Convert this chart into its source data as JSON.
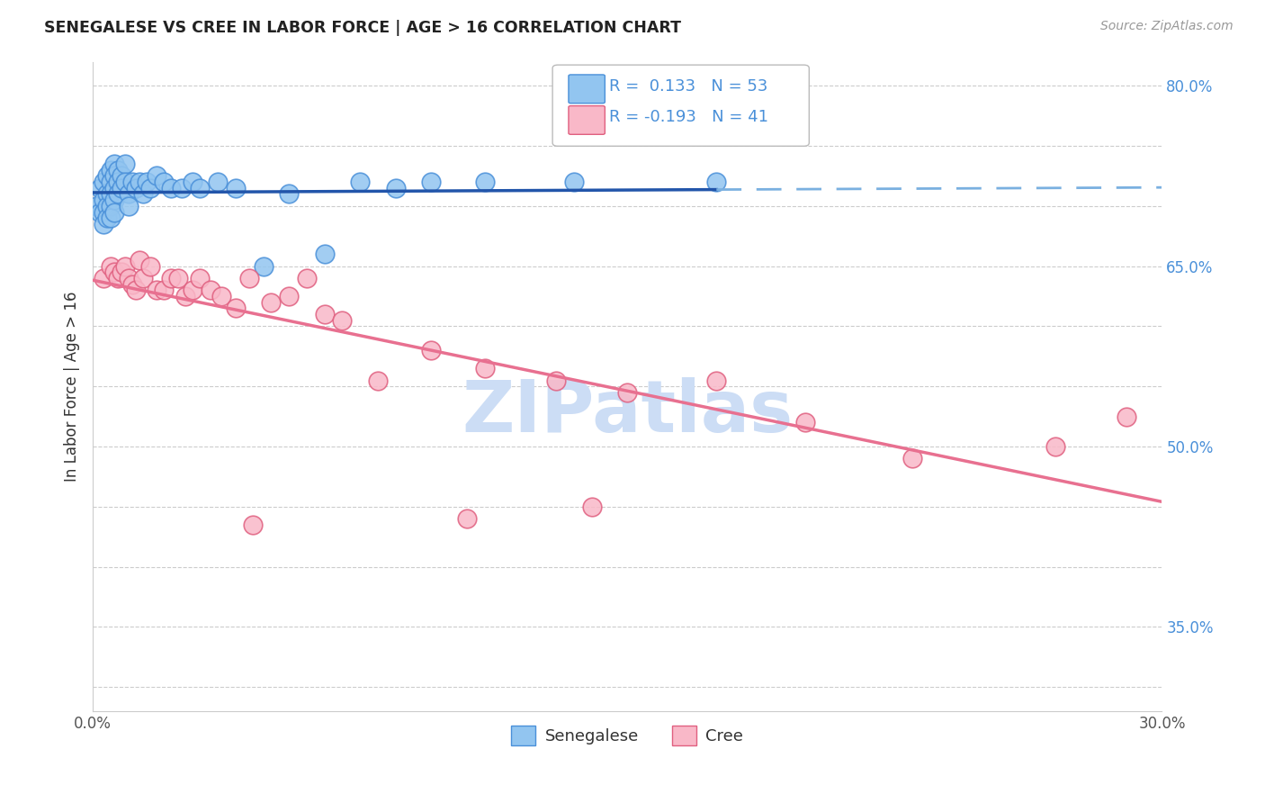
{
  "title": "SENEGALESE VS CREE IN LABOR FORCE | AGE > 16 CORRELATION CHART",
  "source": "Source: ZipAtlas.com",
  "ylabel": "In Labor Force | Age > 16",
  "xlim": [
    0.0,
    0.3
  ],
  "ylim": [
    0.28,
    0.82
  ],
  "y_tick_pos": [
    0.3,
    0.35,
    0.4,
    0.45,
    0.5,
    0.55,
    0.6,
    0.65,
    0.7,
    0.75,
    0.8
  ],
  "y_tick_labels": [
    "",
    "35.0%",
    "",
    "",
    "50.0%",
    "",
    "",
    "65.0%",
    "",
    "",
    "80.0%"
  ],
  "x_tick_pos": [
    0.0,
    0.05,
    0.1,
    0.15,
    0.2,
    0.25,
    0.3
  ],
  "x_tick_labels": [
    "0.0%",
    "",
    "",
    "",
    "",
    "",
    "30.0%"
  ],
  "senegalese_color": "#92c5f0",
  "senegalese_edge_color": "#4a90d9",
  "cree_color": "#f9b8c8",
  "cree_edge_color": "#e06080",
  "trend_blue_color": "#2255aa",
  "trend_blue_dashed_color": "#7ab0e0",
  "trend_pink_color": "#e87090",
  "watermark": "ZIPatlas",
  "watermark_color": "#ccddf5",
  "legend_r1_text": "R =  0.133   N = 53",
  "legend_r2_text": "R = -0.193   N = 41",
  "legend_color": "#4a90d9",
  "senegalese_x": [
    0.001,
    0.002,
    0.002,
    0.003,
    0.003,
    0.003,
    0.003,
    0.004,
    0.004,
    0.004,
    0.004,
    0.005,
    0.005,
    0.005,
    0.005,
    0.005,
    0.006,
    0.006,
    0.006,
    0.006,
    0.006,
    0.007,
    0.007,
    0.007,
    0.008,
    0.008,
    0.009,
    0.009,
    0.01,
    0.01,
    0.011,
    0.012,
    0.013,
    0.014,
    0.015,
    0.016,
    0.018,
    0.02,
    0.022,
    0.025,
    0.028,
    0.03,
    0.035,
    0.04,
    0.048,
    0.055,
    0.065,
    0.075,
    0.085,
    0.095,
    0.11,
    0.135,
    0.175
  ],
  "senegalese_y": [
    0.7,
    0.715,
    0.695,
    0.72,
    0.705,
    0.695,
    0.685,
    0.725,
    0.71,
    0.7,
    0.69,
    0.73,
    0.72,
    0.71,
    0.7,
    0.69,
    0.735,
    0.725,
    0.715,
    0.705,
    0.695,
    0.73,
    0.72,
    0.71,
    0.725,
    0.715,
    0.735,
    0.72,
    0.71,
    0.7,
    0.72,
    0.715,
    0.72,
    0.71,
    0.72,
    0.715,
    0.725,
    0.72,
    0.715,
    0.715,
    0.72,
    0.715,
    0.72,
    0.715,
    0.65,
    0.71,
    0.66,
    0.72,
    0.715,
    0.72,
    0.72,
    0.72,
    0.72
  ],
  "cree_x": [
    0.003,
    0.005,
    0.006,
    0.007,
    0.008,
    0.009,
    0.01,
    0.011,
    0.012,
    0.013,
    0.014,
    0.016,
    0.018,
    0.02,
    0.022,
    0.024,
    0.026,
    0.028,
    0.03,
    0.033,
    0.036,
    0.04,
    0.044,
    0.05,
    0.055,
    0.06,
    0.065,
    0.07,
    0.08,
    0.095,
    0.11,
    0.13,
    0.15,
    0.175,
    0.2,
    0.23,
    0.27,
    0.29,
    0.14,
    0.105,
    0.045
  ],
  "cree_y": [
    0.64,
    0.65,
    0.645,
    0.64,
    0.645,
    0.65,
    0.64,
    0.635,
    0.63,
    0.655,
    0.64,
    0.65,
    0.63,
    0.63,
    0.64,
    0.64,
    0.625,
    0.63,
    0.64,
    0.63,
    0.625,
    0.615,
    0.64,
    0.62,
    0.625,
    0.64,
    0.61,
    0.605,
    0.555,
    0.58,
    0.565,
    0.555,
    0.545,
    0.555,
    0.52,
    0.49,
    0.5,
    0.525,
    0.45,
    0.44,
    0.435
  ]
}
